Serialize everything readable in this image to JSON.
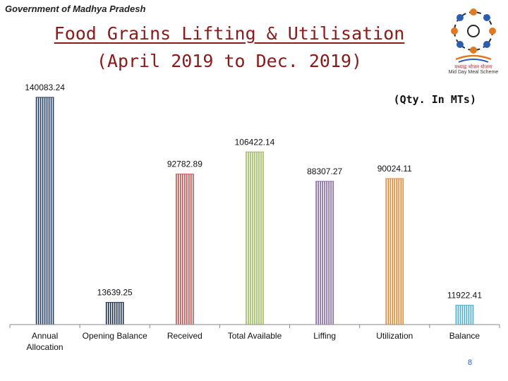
{
  "header": {
    "org": "Government of Madhya Pradesh",
    "title_line1": "Food Grains Lifting & Utilisation",
    "title_line2": "(April 2019 to Dec. 2019)",
    "unit_note": "(Qty. In MTs)",
    "page_number": "8"
  },
  "logo": {
    "icon": "mid-day-meal-logo-icon",
    "text_hindi": "मध्याह्न भोजन योजना",
    "text_english": "Mid Day Meal Scheme"
  },
  "chart_data": {
    "type": "bar",
    "title": "Food Grains Lifting & Utilisation",
    "subtitle": "(April 2019 to Dec. 2019)",
    "unit": "(Qty. In MTs)",
    "categories": [
      "Annual Allocation",
      "Opening Balance",
      "Received",
      "Total Available",
      "Liffing",
      "Utilization",
      "Balance"
    ],
    "category_lines": [
      [
        "Annual",
        "Allocation"
      ],
      [
        "Opening Balance"
      ],
      [
        "Received"
      ],
      [
        "Total Available"
      ],
      [
        "Liffing"
      ],
      [
        "Utilization"
      ],
      [
        "Balance"
      ]
    ],
    "values": [
      140083.24,
      13639.25,
      92782.89,
      106422.14,
      88307.27,
      90024.11,
      11922.41
    ],
    "value_labels": [
      "140083.24",
      "13639.25",
      "92782.89",
      "106422.14",
      "88307.27",
      "90024.11",
      "11922.41"
    ],
    "colors": [
      "#1f3a5f",
      "#1a2a44",
      "#c0504d",
      "#9bbb59",
      "#8064a2",
      "#e0882a",
      "#4bacc6"
    ],
    "ylim": [
      0,
      140083.24
    ],
    "grid": false,
    "legend": "none"
  }
}
